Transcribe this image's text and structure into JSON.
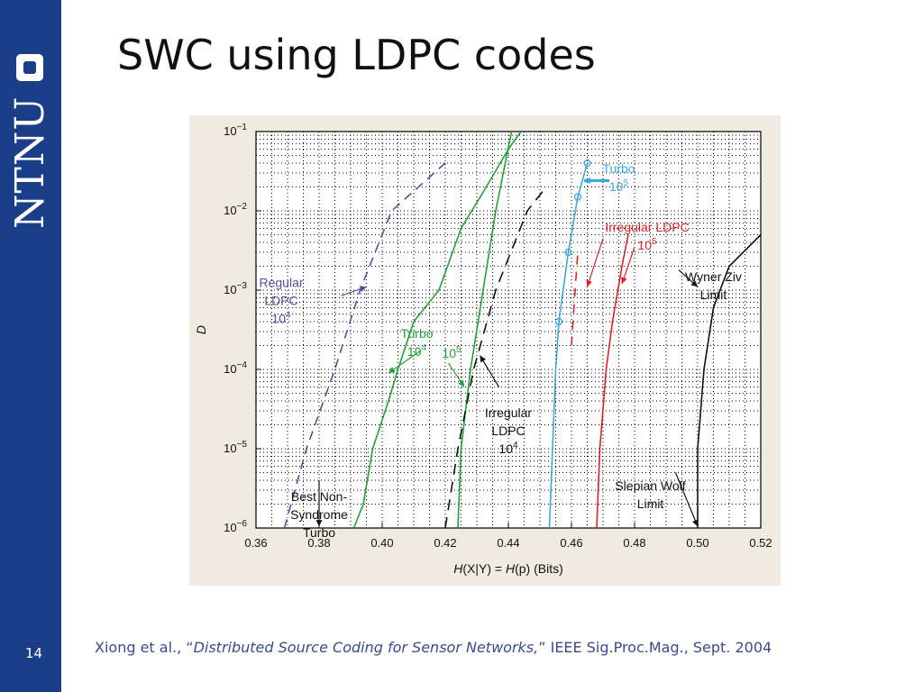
{
  "slide": {
    "title": "SWC using LDPC codes",
    "number": "14",
    "logo_text": "NTNU",
    "citation": {
      "prefix": "Xiong et al., “",
      "italic": "Distributed Source Coding for Sensor Networks,",
      "suffix": "” IEEE Sig.Proc.Mag., Sept. 2004"
    }
  },
  "colors": {
    "sidebar": "#1b3e88",
    "figure_bg": "#efebe0",
    "purple": "#5a4aa0",
    "green": "#22a035",
    "blue": "#3aa8e0",
    "red": "#e0202a",
    "black": "#111111"
  },
  "chart_data": {
    "type": "line",
    "x_label_parts": [
      "H",
      "(X|Y) = ",
      "H",
      "(p)   (Bits)"
    ],
    "ylabel": "D",
    "x_ticks": [
      "0.36",
      "0.38",
      "0.40",
      "0.42",
      "0.44",
      "0.46",
      "0.48",
      "0.50",
      "0.52"
    ],
    "y_ticks": [
      {
        "base": "10",
        "exp": "−6"
      },
      {
        "base": "10",
        "exp": "−5"
      },
      {
        "base": "10",
        "exp": "−4"
      },
      {
        "base": "10",
        "exp": "−3"
      },
      {
        "base": "10",
        "exp": "−2"
      },
      {
        "base": "10",
        "exp": "−1"
      }
    ],
    "xlim": [
      0.36,
      0.52
    ],
    "ylim_log10": [
      -6,
      -1
    ],
    "y_scale": "log",
    "grid": true,
    "series": [
      {
        "key": "regular_ldpc_1e4",
        "color": "purple",
        "dash": "10,7",
        "points": [
          [
            0.369,
            1e-06
          ],
          [
            0.376,
            1e-05
          ],
          [
            0.385,
            0.0001
          ],
          [
            0.393,
            0.001
          ],
          [
            0.403,
            0.01
          ],
          [
            0.42,
            0.04
          ]
        ]
      },
      {
        "key": "best_nonsyndrome_turbo",
        "color": "green",
        "dash": "",
        "points": [
          [
            0.391,
            1e-06
          ],
          [
            0.394,
            2e-06
          ],
          [
            0.397,
            1e-05
          ],
          [
            0.402,
            4e-05
          ],
          [
            0.405,
            0.0001
          ],
          [
            0.41,
            0.0004
          ],
          [
            0.418,
            0.001
          ],
          [
            0.425,
            0.006
          ],
          [
            0.433,
            0.02
          ],
          [
            0.44,
            0.06
          ],
          [
            0.444,
            0.1
          ]
        ]
      },
      {
        "key": "turbo_1e5",
        "color": "green",
        "dash": "",
        "points": [
          [
            0.424,
            1e-06
          ],
          [
            0.425,
            1e-05
          ],
          [
            0.428,
            0.0001
          ],
          [
            0.432,
            0.001
          ],
          [
            0.436,
            0.01
          ],
          [
            0.441,
            0.1
          ]
        ]
      },
      {
        "key": "irregular_ldpc_1e4",
        "color": "black",
        "dash": "12,8",
        "points": [
          [
            0.42,
            1e-06
          ],
          [
            0.424,
            1e-05
          ],
          [
            0.429,
            0.0001
          ],
          [
            0.436,
            0.001
          ],
          [
            0.446,
            0.01
          ],
          [
            0.452,
            0.02
          ]
        ]
      },
      {
        "key": "turbo_blue_1e5",
        "color": "blue",
        "dash": "",
        "points": [
          [
            0.453,
            1e-06
          ],
          [
            0.454,
            1e-05
          ],
          [
            0.455,
            0.0001
          ],
          [
            0.456,
            0.0004
          ],
          [
            0.459,
            0.003
          ],
          [
            0.462,
            0.015
          ],
          [
            0.465,
            0.04
          ]
        ],
        "markers": [
          [
            0.456,
            0.0004
          ],
          [
            0.459,
            0.003
          ],
          [
            0.462,
            0.015
          ],
          [
            0.465,
            0.04
          ]
        ]
      },
      {
        "key": "irregular_ldpc_red_dashed",
        "color": "red",
        "dash": "10,8",
        "points": [
          [
            0.46,
            0.0002
          ],
          [
            0.461,
            0.0008
          ],
          [
            0.462,
            0.003
          ]
        ]
      },
      {
        "key": "irregular_ldpc_red_1e5",
        "color": "red",
        "dash": "",
        "points": [
          [
            0.468,
            1e-06
          ],
          [
            0.469,
            1e-05
          ],
          [
            0.471,
            0.0001
          ],
          [
            0.473,
            0.0004
          ],
          [
            0.476,
            0.002
          ],
          [
            0.478,
            0.005
          ]
        ]
      },
      {
        "key": "wyner_ziv_limit",
        "color": "black",
        "dash": "",
        "points": [
          [
            0.5,
            1e-06
          ],
          [
            0.5,
            1e-05
          ],
          [
            0.502,
            0.0001
          ],
          [
            0.505,
            0.0006
          ],
          [
            0.51,
            0.002
          ],
          [
            0.52,
            0.005
          ]
        ]
      }
    ],
    "annotations": [
      {
        "lines": [
          "Regular",
          "LDPC",
          "10|4"
        ],
        "color": "purple",
        "x": 0.368,
        "y": 0.0011,
        "anchor": "middle"
      },
      {
        "lines": [
          "Turbo",
          "10|4"
        ],
        "color": "green",
        "x": 0.411,
        "y": 0.00025,
        "anchor": "middle"
      },
      {
        "lines": [
          "10|5"
        ],
        "color": "green",
        "x": 0.422,
        "y": 0.00014,
        "anchor": "middle"
      },
      {
        "lines": [
          "Irregular",
          "LDPC",
          "10|4"
        ],
        "color": "black",
        "x": 0.44,
        "y": 2.5e-05,
        "anchor": "middle"
      },
      {
        "lines": [
          "Turbo",
          "10|5"
        ],
        "color": "blue",
        "x": 0.475,
        "y": 0.03,
        "anchor": "middle"
      },
      {
        "lines": [
          "Irregular LDPC",
          "10|5"
        ],
        "color": "red",
        "x": 0.484,
        "y": 0.0055,
        "anchor": "middle"
      },
      {
        "lines": [
          "Wyner Ziv",
          "Limit"
        ],
        "color": "black",
        "x": 0.505,
        "y": 0.0013,
        "anchor": "middle"
      },
      {
        "lines": [
          "Best Non-",
          "Syndrome",
          "Turbo"
        ],
        "color": "black",
        "x": 0.38,
        "y": 2.2e-06,
        "anchor": "middle"
      },
      {
        "lines": [
          "Slepian Wolf",
          "Limit"
        ],
        "color": "black",
        "x": 0.485,
        "y": 3e-06,
        "anchor": "middle"
      }
    ],
    "arrows": [
      {
        "color": "purple",
        "from": [
          0.387,
          0.00085
        ],
        "to": [
          0.395,
          0.0011
        ]
      },
      {
        "color": "green",
        "from": [
          0.412,
          0.00017
        ],
        "to": [
          0.402,
          9e-05
        ]
      },
      {
        "color": "green",
        "from": [
          0.421,
          0.00012
        ],
        "to": [
          0.426,
          6e-05
        ]
      },
      {
        "color": "black",
        "from": [
          0.437,
          6e-05
        ],
        "to": [
          0.431,
          0.00015
        ]
      },
      {
        "color": "blue",
        "from": [
          0.472,
          0.024
        ],
        "to": [
          0.464,
          0.024
        ]
      },
      {
        "color": "red",
        "from": [
          0.47,
          0.0045
        ],
        "to": [
          0.465,
          0.0011
        ]
      },
      {
        "color": "red",
        "from": [
          0.48,
          0.0035
        ],
        "to": [
          0.476,
          0.0012
        ]
      },
      {
        "color": "black",
        "from": [
          0.494,
          0.0018
        ],
        "to": [
          0.5,
          0.0011
        ]
      },
      {
        "color": "black",
        "from": [
          0.38,
          4e-06
        ],
        "to": [
          0.38,
          1.05e-06
        ]
      },
      {
        "color": "black",
        "from": [
          0.493,
          5e-06
        ],
        "to": [
          0.5,
          1.05e-06
        ]
      }
    ]
  }
}
